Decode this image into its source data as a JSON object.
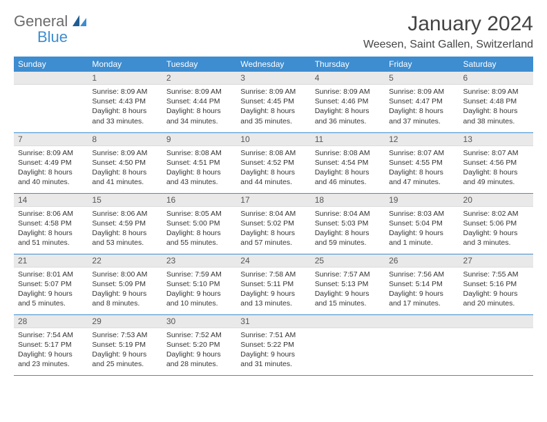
{
  "logo": {
    "text1": "General",
    "text2": "Blue",
    "color_general": "#6b6b6b",
    "color_blue": "#3d8dd0"
  },
  "title": "January 2024",
  "location": "Weesen, Saint Gallen, Switzerland",
  "day_headers": [
    "Sunday",
    "Monday",
    "Tuesday",
    "Wednesday",
    "Thursday",
    "Friday",
    "Saturday"
  ],
  "header_bg": "#3d8dd0",
  "daynum_bg": "#e9e9e9",
  "border_color": "#3d8dd0",
  "weeks": [
    [
      null,
      {
        "n": "1",
        "r": "Sunrise: 8:09 AM",
        "s": "Sunset: 4:43 PM",
        "d1": "Daylight: 8 hours",
        "d2": "and 33 minutes."
      },
      {
        "n": "2",
        "r": "Sunrise: 8:09 AM",
        "s": "Sunset: 4:44 PM",
        "d1": "Daylight: 8 hours",
        "d2": "and 34 minutes."
      },
      {
        "n": "3",
        "r": "Sunrise: 8:09 AM",
        "s": "Sunset: 4:45 PM",
        "d1": "Daylight: 8 hours",
        "d2": "and 35 minutes."
      },
      {
        "n": "4",
        "r": "Sunrise: 8:09 AM",
        "s": "Sunset: 4:46 PM",
        "d1": "Daylight: 8 hours",
        "d2": "and 36 minutes."
      },
      {
        "n": "5",
        "r": "Sunrise: 8:09 AM",
        "s": "Sunset: 4:47 PM",
        "d1": "Daylight: 8 hours",
        "d2": "and 37 minutes."
      },
      {
        "n": "6",
        "r": "Sunrise: 8:09 AM",
        "s": "Sunset: 4:48 PM",
        "d1": "Daylight: 8 hours",
        "d2": "and 38 minutes."
      }
    ],
    [
      {
        "n": "7",
        "r": "Sunrise: 8:09 AM",
        "s": "Sunset: 4:49 PM",
        "d1": "Daylight: 8 hours",
        "d2": "and 40 minutes."
      },
      {
        "n": "8",
        "r": "Sunrise: 8:09 AM",
        "s": "Sunset: 4:50 PM",
        "d1": "Daylight: 8 hours",
        "d2": "and 41 minutes."
      },
      {
        "n": "9",
        "r": "Sunrise: 8:08 AM",
        "s": "Sunset: 4:51 PM",
        "d1": "Daylight: 8 hours",
        "d2": "and 43 minutes."
      },
      {
        "n": "10",
        "r": "Sunrise: 8:08 AM",
        "s": "Sunset: 4:52 PM",
        "d1": "Daylight: 8 hours",
        "d2": "and 44 minutes."
      },
      {
        "n": "11",
        "r": "Sunrise: 8:08 AM",
        "s": "Sunset: 4:54 PM",
        "d1": "Daylight: 8 hours",
        "d2": "and 46 minutes."
      },
      {
        "n": "12",
        "r": "Sunrise: 8:07 AM",
        "s": "Sunset: 4:55 PM",
        "d1": "Daylight: 8 hours",
        "d2": "and 47 minutes."
      },
      {
        "n": "13",
        "r": "Sunrise: 8:07 AM",
        "s": "Sunset: 4:56 PM",
        "d1": "Daylight: 8 hours",
        "d2": "and 49 minutes."
      }
    ],
    [
      {
        "n": "14",
        "r": "Sunrise: 8:06 AM",
        "s": "Sunset: 4:58 PM",
        "d1": "Daylight: 8 hours",
        "d2": "and 51 minutes."
      },
      {
        "n": "15",
        "r": "Sunrise: 8:06 AM",
        "s": "Sunset: 4:59 PM",
        "d1": "Daylight: 8 hours",
        "d2": "and 53 minutes."
      },
      {
        "n": "16",
        "r": "Sunrise: 8:05 AM",
        "s": "Sunset: 5:00 PM",
        "d1": "Daylight: 8 hours",
        "d2": "and 55 minutes."
      },
      {
        "n": "17",
        "r": "Sunrise: 8:04 AM",
        "s": "Sunset: 5:02 PM",
        "d1": "Daylight: 8 hours",
        "d2": "and 57 minutes."
      },
      {
        "n": "18",
        "r": "Sunrise: 8:04 AM",
        "s": "Sunset: 5:03 PM",
        "d1": "Daylight: 8 hours",
        "d2": "and 59 minutes."
      },
      {
        "n": "19",
        "r": "Sunrise: 8:03 AM",
        "s": "Sunset: 5:04 PM",
        "d1": "Daylight: 9 hours",
        "d2": "and 1 minute."
      },
      {
        "n": "20",
        "r": "Sunrise: 8:02 AM",
        "s": "Sunset: 5:06 PM",
        "d1": "Daylight: 9 hours",
        "d2": "and 3 minutes."
      }
    ],
    [
      {
        "n": "21",
        "r": "Sunrise: 8:01 AM",
        "s": "Sunset: 5:07 PM",
        "d1": "Daylight: 9 hours",
        "d2": "and 5 minutes."
      },
      {
        "n": "22",
        "r": "Sunrise: 8:00 AM",
        "s": "Sunset: 5:09 PM",
        "d1": "Daylight: 9 hours",
        "d2": "and 8 minutes."
      },
      {
        "n": "23",
        "r": "Sunrise: 7:59 AM",
        "s": "Sunset: 5:10 PM",
        "d1": "Daylight: 9 hours",
        "d2": "and 10 minutes."
      },
      {
        "n": "24",
        "r": "Sunrise: 7:58 AM",
        "s": "Sunset: 5:11 PM",
        "d1": "Daylight: 9 hours",
        "d2": "and 13 minutes."
      },
      {
        "n": "25",
        "r": "Sunrise: 7:57 AM",
        "s": "Sunset: 5:13 PM",
        "d1": "Daylight: 9 hours",
        "d2": "and 15 minutes."
      },
      {
        "n": "26",
        "r": "Sunrise: 7:56 AM",
        "s": "Sunset: 5:14 PM",
        "d1": "Daylight: 9 hours",
        "d2": "and 17 minutes."
      },
      {
        "n": "27",
        "r": "Sunrise: 7:55 AM",
        "s": "Sunset: 5:16 PM",
        "d1": "Daylight: 9 hours",
        "d2": "and 20 minutes."
      }
    ],
    [
      {
        "n": "28",
        "r": "Sunrise: 7:54 AM",
        "s": "Sunset: 5:17 PM",
        "d1": "Daylight: 9 hours",
        "d2": "and 23 minutes."
      },
      {
        "n": "29",
        "r": "Sunrise: 7:53 AM",
        "s": "Sunset: 5:19 PM",
        "d1": "Daylight: 9 hours",
        "d2": "and 25 minutes."
      },
      {
        "n": "30",
        "r": "Sunrise: 7:52 AM",
        "s": "Sunset: 5:20 PM",
        "d1": "Daylight: 9 hours",
        "d2": "and 28 minutes."
      },
      {
        "n": "31",
        "r": "Sunrise: 7:51 AM",
        "s": "Sunset: 5:22 PM",
        "d1": "Daylight: 9 hours",
        "d2": "and 31 minutes."
      },
      null,
      null,
      null
    ]
  ]
}
